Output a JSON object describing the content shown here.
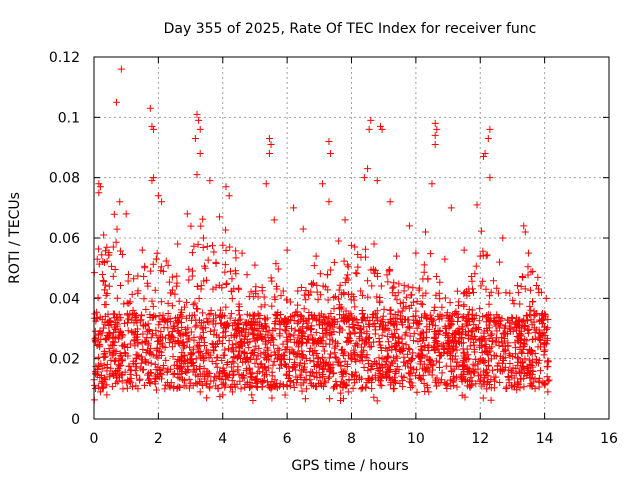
{
  "chart_data": {
    "type": "scatter",
    "title": "Day 355 of 2025, Rate Of TEC Index for receiver func",
    "xlabel": "GPS time / hours",
    "ylabel": "ROTI / TECUs",
    "xlim": [
      0,
      16
    ],
    "ylim": [
      0,
      0.12
    ],
    "xticks": [
      "0",
      "2",
      "4",
      "6",
      "8",
      "10",
      "12",
      "14",
      "16"
    ],
    "yticks": [
      "0",
      "0.02",
      "0.04",
      "0.06",
      "0.08",
      "0.1",
      "0.12"
    ],
    "grid": true,
    "marker": "plus",
    "color": "#ff0000",
    "series": [
      {
        "points": [
          [
            0.85,
            0.116
          ],
          [
            0.7,
            0.105
          ],
          [
            1.75,
            0.103
          ],
          [
            1.8,
            0.097
          ],
          [
            1.85,
            0.096
          ],
          [
            3.2,
            0.101
          ],
          [
            3.25,
            0.099
          ],
          [
            3.3,
            0.096
          ],
          [
            3.15,
            0.093
          ],
          [
            3.3,
            0.088
          ],
          [
            5.45,
            0.093
          ],
          [
            5.5,
            0.091
          ],
          [
            5.45,
            0.088
          ],
          [
            7.3,
            0.092
          ],
          [
            7.35,
            0.088
          ],
          [
            8.6,
            0.099
          ],
          [
            8.55,
            0.096
          ],
          [
            8.9,
            0.097
          ],
          [
            8.95,
            0.096
          ],
          [
            10.6,
            0.098
          ],
          [
            10.65,
            0.096
          ],
          [
            10.6,
            0.094
          ],
          [
            10.6,
            0.091
          ],
          [
            12.3,
            0.096
          ],
          [
            12.25,
            0.093
          ],
          [
            12.15,
            0.088
          ],
          [
            12.1,
            0.087
          ],
          [
            1.85,
            0.08
          ],
          [
            1.8,
            0.079
          ],
          [
            3.2,
            0.081
          ],
          [
            3.6,
            0.079
          ],
          [
            4.1,
            0.077
          ],
          [
            0.15,
            0.078
          ],
          [
            0.2,
            0.077
          ],
          [
            0.15,
            0.075
          ],
          [
            5.35,
            0.078
          ],
          [
            7.1,
            0.078
          ],
          [
            8.5,
            0.083
          ],
          [
            8.4,
            0.08
          ],
          [
            8.8,
            0.079
          ],
          [
            10.5,
            0.078
          ],
          [
            12.3,
            0.08
          ],
          [
            2.0,
            0.074
          ],
          [
            2.1,
            0.072
          ],
          [
            4.2,
            0.074
          ],
          [
            6.2,
            0.07
          ],
          [
            7.3,
            0.072
          ],
          [
            9.2,
            0.072
          ],
          [
            11.1,
            0.07
          ],
          [
            11.9,
            0.071
          ],
          [
            13.35,
            0.064
          ],
          [
            13.4,
            0.062
          ],
          [
            0.8,
            0.072
          ],
          [
            1.0,
            0.068
          ],
          [
            2.9,
            0.068
          ],
          [
            3.9,
            0.067
          ],
          [
            5.6,
            0.066
          ],
          [
            6.5,
            0.063
          ],
          [
            7.8,
            0.066
          ],
          [
            9.8,
            0.064
          ],
          [
            10.3,
            0.062
          ],
          [
            12.7,
            0.06
          ],
          [
            0.1,
            0.053
          ],
          [
            0.3,
            0.061
          ],
          [
            0.6,
            0.057
          ],
          [
            1.5,
            0.056
          ],
          [
            2.6,
            0.058
          ],
          [
            3.4,
            0.06
          ],
          [
            4.6,
            0.055
          ],
          [
            5.0,
            0.051
          ],
          [
            6.0,
            0.056
          ],
          [
            6.9,
            0.054
          ],
          [
            7.6,
            0.059
          ],
          [
            8.1,
            0.057
          ],
          [
            8.7,
            0.058
          ],
          [
            9.4,
            0.054
          ],
          [
            10.0,
            0.055
          ],
          [
            10.9,
            0.053
          ],
          [
            11.5,
            0.056
          ],
          [
            12.0,
            0.054
          ],
          [
            12.6,
            0.052
          ],
          [
            13.5,
            0.055
          ],
          [
            13.9,
            0.042
          ],
          [
            14.05,
            0.04
          ],
          [
            14.1,
            0.033
          ],
          [
            14.0,
            0.025
          ],
          [
            14.1,
            0.009
          ],
          [
            0.05,
            0.015
          ],
          [
            0.2,
            0.009
          ],
          [
            0.4,
            0.008
          ],
          [
            0.9,
            0.01
          ],
          [
            1.3,
            0.011
          ],
          [
            2.2,
            0.01
          ],
          [
            2.8,
            0.011
          ],
          [
            3.3,
            0.009
          ],
          [
            3.5,
            0.007
          ],
          [
            4.0,
            0.008
          ],
          [
            4.3,
            0.009
          ],
          [
            4.9,
            0.008
          ],
          [
            5.5,
            0.01
          ],
          [
            6.1,
            0.011
          ],
          [
            6.6,
            0.01
          ],
          [
            7.2,
            0.012
          ],
          [
            7.9,
            0.009
          ],
          [
            8.3,
            0.01
          ],
          [
            8.8,
            0.006
          ],
          [
            9.3,
            0.01
          ],
          [
            9.9,
            0.011
          ],
          [
            10.4,
            0.009
          ],
          [
            10.9,
            0.012
          ],
          [
            11.6,
            0.011
          ],
          [
            12.2,
            0.01
          ],
          [
            12.9,
            0.012
          ],
          [
            13.6,
            0.011
          ],
          [
            13.95,
            0.012
          ]
        ]
      }
    ]
  }
}
